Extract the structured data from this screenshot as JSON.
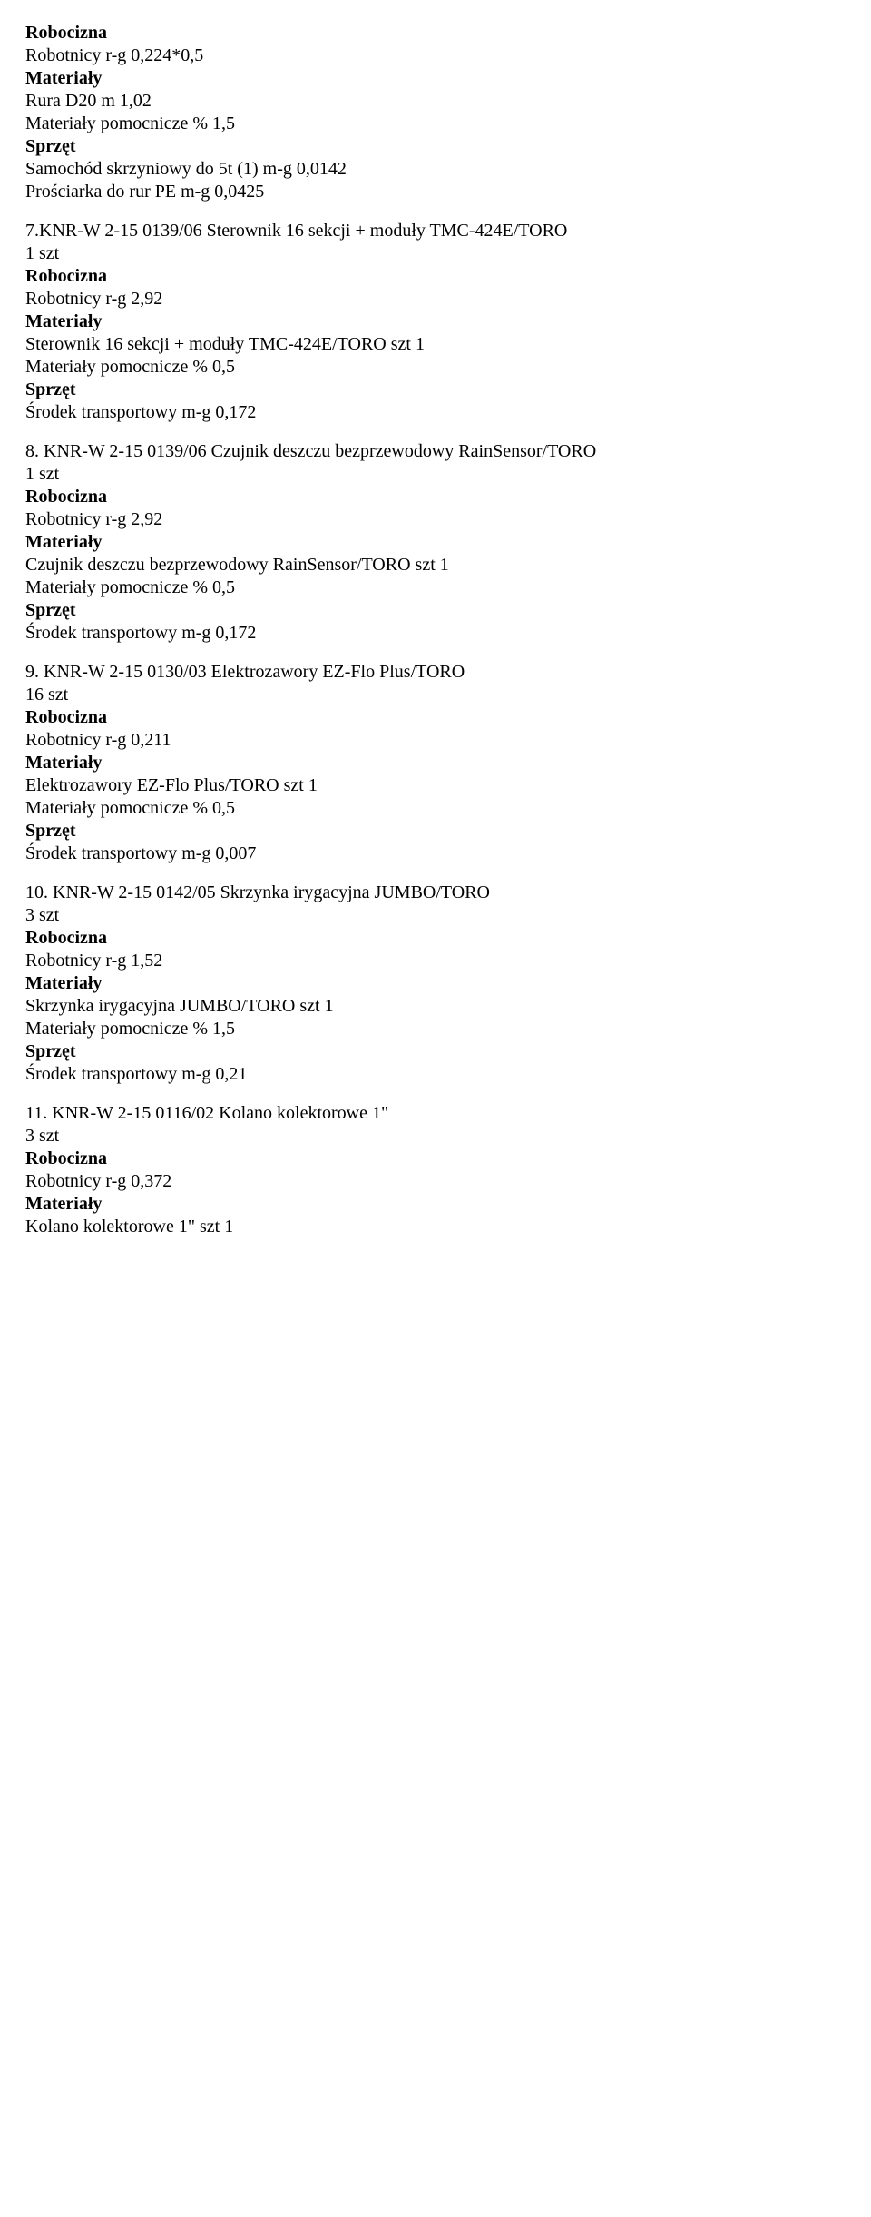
{
  "fontFamily": "Times New Roman",
  "fontSizePx": 20,
  "textColor": "#000000",
  "backgroundColor": "#ffffff",
  "boldLabels": {
    "robocizna": "Robocizna",
    "materialy": "Materiały",
    "sprzet": "Sprzęt"
  },
  "intro": {
    "l1": "Robotnicy r-g 0,224*0,5",
    "l2": "Rura D20 m 1,02",
    "l3": "Materiały pomocnicze % 1,5",
    "l4": "Samochód skrzyniowy do 5t (1) m-g 0,0142",
    "l5": "Prościarka do rur PE m-g 0,0425"
  },
  "sec7": {
    "title": "7.KNR-W 2-15 0139/06 Sterownik 16 sekcji + moduły TMC-424E/TORO",
    "qty": "1 szt",
    "rob": "Robotnicy r-g 2,92",
    "mat": "Sterownik 16 sekcji + moduły TMC-424E/TORO szt 1",
    "pom": "Materiały pomocnicze % 0,5",
    "spr": "Środek transportowy m-g 0,172"
  },
  "sec8": {
    "title": "8. KNR-W 2-15 0139/06 Czujnik deszczu bezprzewodowy RainSensor/TORO",
    "qty": "1 szt",
    "rob": "Robotnicy r-g 2,92",
    "mat": "Czujnik deszczu bezprzewodowy RainSensor/TORO szt 1",
    "pom": "Materiały pomocnicze % 0,5",
    "spr": "Środek transportowy m-g 0,172"
  },
  "sec9": {
    "title": "9. KNR-W 2-15 0130/03 Elektrozawory EZ-Flo Plus/TORO",
    "qty": "16 szt",
    "rob": "Robotnicy r-g 0,211",
    "mat": "Elektrozawory EZ-Flo Plus/TORO szt 1",
    "pom": "Materiały pomocnicze % 0,5",
    "spr": "Środek transportowy m-g 0,007"
  },
  "sec10": {
    "title": "10. KNR-W 2-15 0142/05 Skrzynka irygacyjna JUMBO/TORO",
    "qty": "3 szt",
    "rob": "Robotnicy r-g 1,52",
    "mat": "Skrzynka irygacyjna JUMBO/TORO szt 1",
    "pom": "Materiały pomocnicze % 1,5",
    "spr": "Środek transportowy m-g 0,21"
  },
  "sec11": {
    "title": "11. KNR-W 2-15 0116/02 Kolano kolektorowe 1\"",
    "qty": "3 szt",
    "rob": "Robotnicy r-g 0,372",
    "mat": "Kolano kolektorowe 1\" szt 1"
  }
}
